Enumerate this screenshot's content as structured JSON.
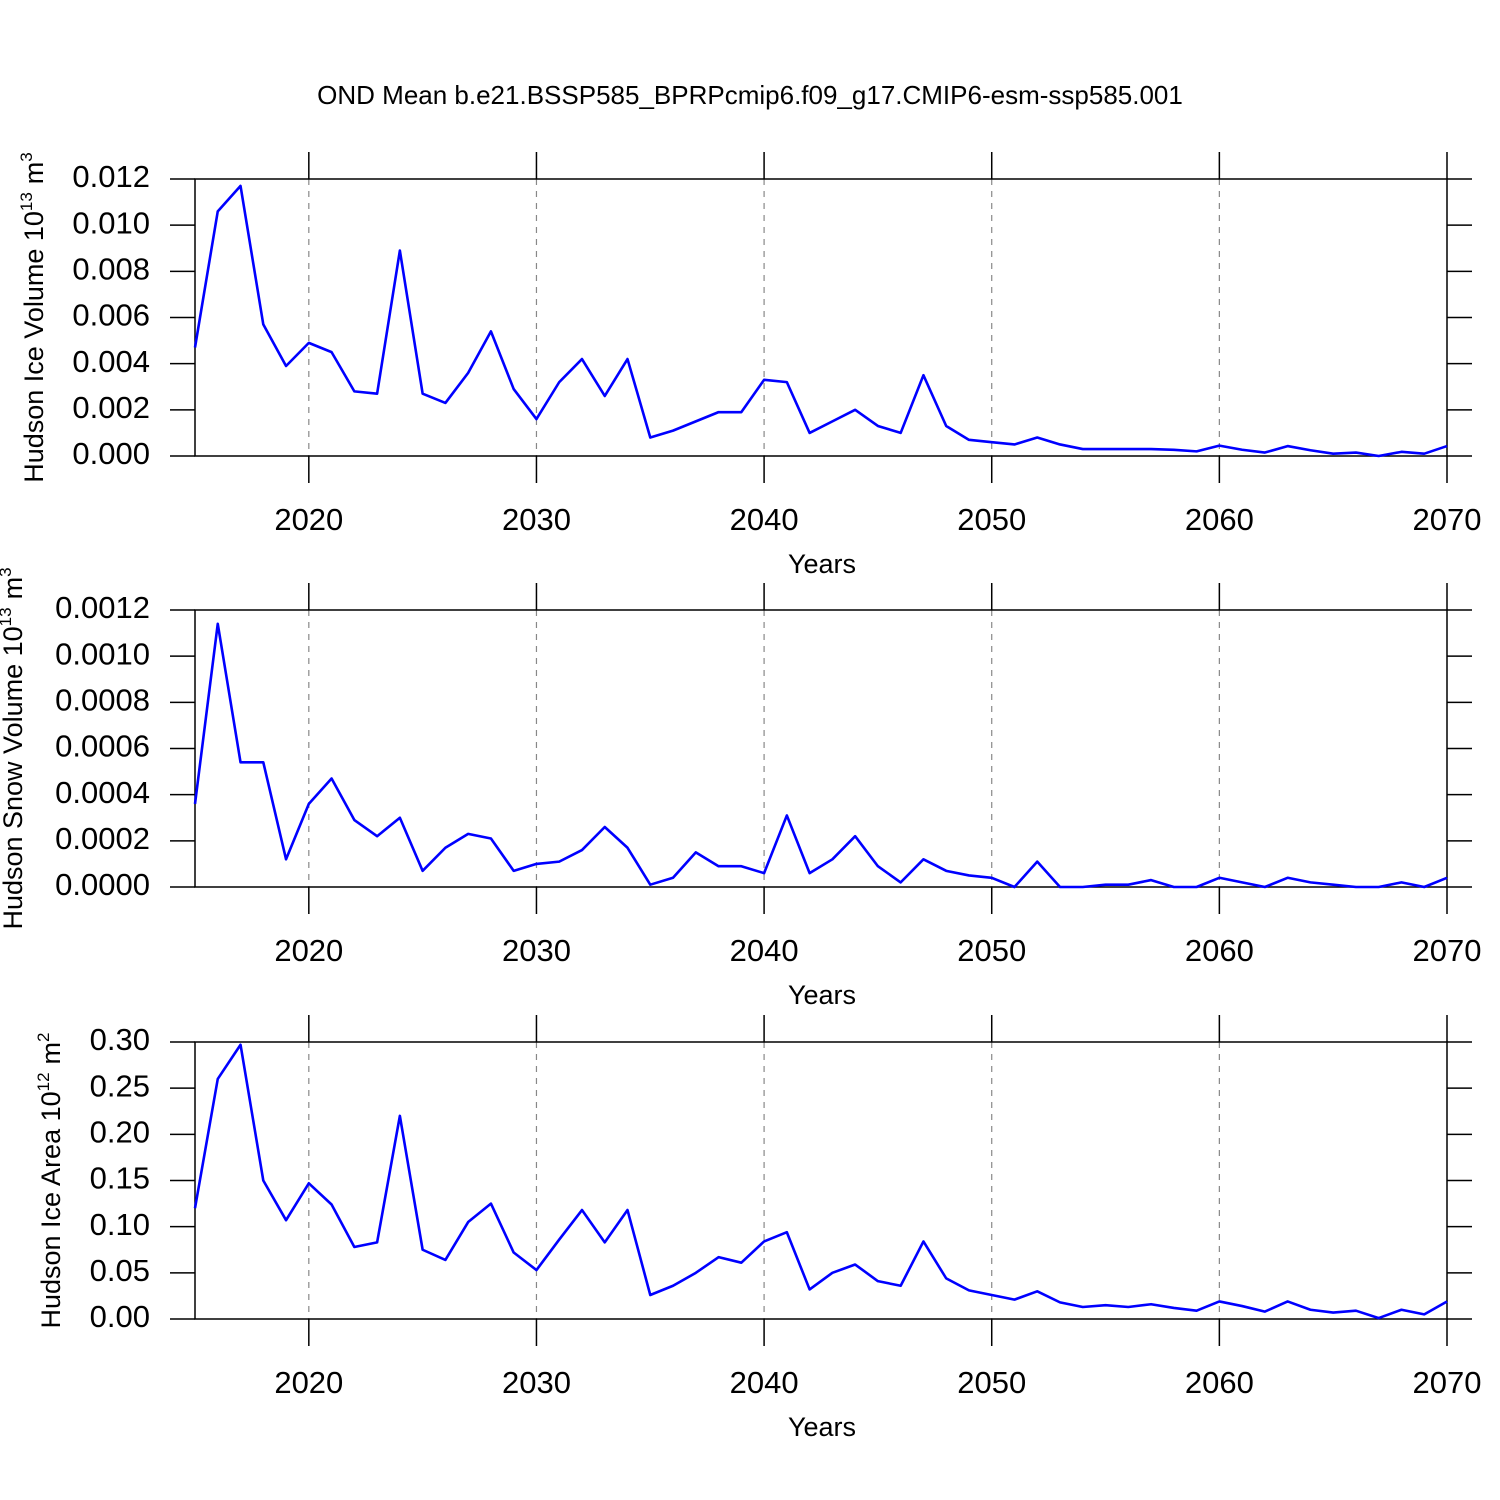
{
  "chart_data": [
    {
      "type": "line",
      "title": "OND Mean b.e21.BSSP585_BPRPcmip6.f09_g17.CMIP6-esm-ssp585.001",
      "ylabel": {
        "text": "Hudson Ice Volume 10",
        "power": "13",
        "unit": "m",
        "unit_power": "3"
      },
      "xlabel": "Years",
      "color": "#0000ff",
      "grid": true,
      "x": [
        2015,
        2016,
        2017,
        2018,
        2019,
        2020,
        2021,
        2022,
        2023,
        2024,
        2025,
        2026,
        2027,
        2028,
        2029,
        2030,
        2031,
        2032,
        2033,
        2034,
        2035,
        2036,
        2037,
        2038,
        2039,
        2040,
        2041,
        2042,
        2043,
        2044,
        2045,
        2046,
        2047,
        2048,
        2049,
        2050,
        2051,
        2052,
        2053,
        2054,
        2055,
        2056,
        2057,
        2058,
        2059,
        2060,
        2061,
        2062,
        2063,
        2064,
        2065,
        2066,
        2067,
        2068,
        2069,
        2070
      ],
      "values": [
        0.0047,
        0.0106,
        0.0117,
        0.0057,
        0.0039,
        0.0049,
        0.0045,
        0.0028,
        0.0027,
        0.0089,
        0.0027,
        0.0023,
        0.0036,
        0.0054,
        0.0029,
        0.0016,
        0.0032,
        0.0042,
        0.0026,
        0.0042,
        0.0008,
        0.0011,
        0.0015,
        0.0019,
        0.0019,
        0.0033,
        0.0032,
        0.001,
        0.0015,
        0.002,
        0.0013,
        0.001,
        0.0035,
        0.0013,
        0.0007,
        0.0006,
        0.0005,
        0.0008,
        0.0005,
        0.0003,
        0.0003,
        0.0003,
        0.0003,
        0.00027,
        0.0002,
        0.00045,
        0.00027,
        0.00015,
        0.00043,
        0.00025,
        0.0001,
        0.00015,
        0.0,
        0.00018,
        0.0001,
        0.00043
      ],
      "xlim": [
        2015,
        2070
      ],
      "xticks": [
        2020,
        2030,
        2040,
        2050,
        2060,
        2070
      ],
      "ylim": [
        0,
        0.012
      ],
      "yticks": [
        {
          "value": 0,
          "label": "0.000"
        },
        0.002,
        0.004,
        0.006,
        0.008,
        {
          "value": 0.01,
          "label": "0.010"
        },
        0.012
      ]
    },
    {
      "type": "line",
      "ylabel": {
        "text": "Hudson Snow Volume 10",
        "power": "13",
        "unit": "m",
        "unit_power": "3"
      },
      "xlabel": "Years",
      "color": "#0000ff",
      "grid": true,
      "x": [
        2015,
        2016,
        2017,
        2018,
        2019,
        2020,
        2021,
        2022,
        2023,
        2024,
        2025,
        2026,
        2027,
        2028,
        2029,
        2030,
        2031,
        2032,
        2033,
        2034,
        2035,
        2036,
        2037,
        2038,
        2039,
        2040,
        2041,
        2042,
        2043,
        2044,
        2045,
        2046,
        2047,
        2048,
        2049,
        2050,
        2051,
        2052,
        2053,
        2054,
        2055,
        2056,
        2057,
        2058,
        2059,
        2060,
        2061,
        2062,
        2063,
        2064,
        2065,
        2066,
        2067,
        2068,
        2069,
        2070
      ],
      "values": [
        0.00036,
        0.00114,
        0.00054,
        0.00054,
        0.00012,
        0.00036,
        0.00047,
        0.00029,
        0.00022,
        0.0003,
        7e-05,
        0.00017,
        0.00023,
        0.00021,
        7e-05,
        0.0001,
        0.00011,
        0.00016,
        0.00026,
        0.00017,
        1e-05,
        4e-05,
        0.00015,
        9e-05,
        9e-05,
        6e-05,
        0.00031,
        6e-05,
        0.00012,
        0.00022,
        9e-05,
        2e-05,
        0.00012,
        7e-05,
        5e-05,
        4e-05,
        0.0,
        0.00011,
        0.0,
        0.0,
        1e-05,
        1e-05,
        3e-05,
        0.0,
        0.0,
        4e-05,
        2e-05,
        0.0,
        4e-05,
        2e-05,
        1e-05,
        0.0,
        0.0,
        2e-05,
        0.0,
        4e-05
      ],
      "xlim": [
        2015,
        2070
      ],
      "xticks": [
        2020,
        2030,
        2040,
        2050,
        2060,
        2070
      ],
      "ylim": [
        0,
        0.0012
      ],
      "yticks": [
        {
          "value": 0,
          "label": "0.0000"
        },
        0.0002,
        0.0004,
        0.0006,
        0.0008,
        {
          "value": 0.001,
          "label": "0.0010"
        },
        0.0012
      ]
    },
    {
      "type": "line",
      "ylabel": {
        "text": "Hudson Ice Area 10",
        "power": "12",
        "unit": "m",
        "unit_power": "2"
      },
      "xlabel": "Years",
      "color": "#0000ff",
      "grid": true,
      "x": [
        2015,
        2016,
        2017,
        2018,
        2019,
        2020,
        2021,
        2022,
        2023,
        2024,
        2025,
        2026,
        2027,
        2028,
        2029,
        2030,
        2031,
        2032,
        2033,
        2034,
        2035,
        2036,
        2037,
        2038,
        2039,
        2040,
        2041,
        2042,
        2043,
        2044,
        2045,
        2046,
        2047,
        2048,
        2049,
        2050,
        2051,
        2052,
        2053,
        2054,
        2055,
        2056,
        2057,
        2058,
        2059,
        2060,
        2061,
        2062,
        2063,
        2064,
        2065,
        2066,
        2067,
        2068,
        2069,
        2070
      ],
      "values": [
        0.12,
        0.26,
        0.297,
        0.15,
        0.107,
        0.147,
        0.124,
        0.078,
        0.083,
        0.22,
        0.075,
        0.064,
        0.105,
        0.125,
        0.072,
        0.053,
        0.086,
        0.118,
        0.083,
        0.118,
        0.026,
        0.036,
        0.05,
        0.067,
        0.061,
        0.084,
        0.094,
        0.032,
        0.05,
        0.059,
        0.041,
        0.036,
        0.084,
        0.044,
        0.031,
        0.026,
        0.021,
        0.03,
        0.018,
        0.013,
        0.015,
        0.013,
        0.016,
        0.012,
        0.009,
        0.019,
        0.014,
        0.008,
        0.019,
        0.01,
        0.007,
        0.009,
        0.001,
        0.01,
        0.005,
        0.019
      ],
      "xlim": [
        2015,
        2070
      ],
      "xticks": [
        2020,
        2030,
        2040,
        2050,
        2060,
        2070
      ],
      "ylim": [
        0,
        0.3
      ],
      "yticks": [
        {
          "value": 0,
          "label": "0.00"
        },
        0.05,
        {
          "value": 0.1,
          "label": "0.10"
        },
        0.15,
        {
          "value": 0.2,
          "label": "0.20"
        },
        0.25,
        {
          "value": 0.3,
          "label": "0.30"
        }
      ]
    }
  ]
}
